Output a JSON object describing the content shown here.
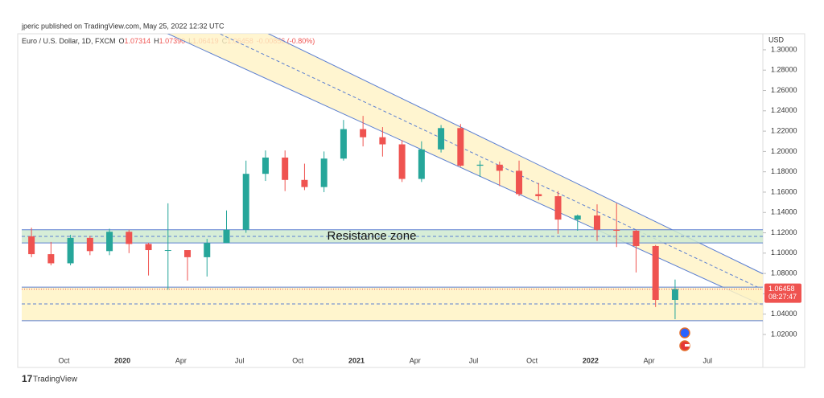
{
  "published": "jperic published on TradingView.com, May 25, 2022 12:32 UTC",
  "footer_logo": "TradingView",
  "header": {
    "symbol": "Euro / U.S. Dollar, 1D, FXCM",
    "stats": [
      {
        "label": "O",
        "value": "1.07314"
      },
      {
        "label": "H",
        "value": "1.07390"
      },
      {
        "label": "L",
        "value": "1.06419"
      },
      {
        "label": "C",
        "value": "1.06458"
      }
    ],
    "change": "-0.00856 (-0.80%)"
  },
  "chart_data": {
    "type": "candlestick",
    "currency": "USD",
    "categories": [
      null,
      null,
      "Oct",
      null,
      null,
      "2020",
      null,
      null,
      "Apr",
      null,
      null,
      "Jul",
      null,
      null,
      "Oct",
      null,
      null,
      "2021",
      null,
      null,
      "Apr",
      null,
      null,
      "Jul",
      null,
      null,
      "Oct",
      null,
      null,
      "2022",
      null,
      null,
      "Apr",
      null,
      null,
      "Jul",
      null,
      null
    ],
    "open": [
      1.1165,
      1.099,
      1.09,
      1.115,
      1.102,
      1.121,
      1.109,
      1.103,
      1.103,
      1.096,
      1.11,
      1.123,
      1.178,
      1.194,
      1.172,
      1.165,
      1.193,
      1.222,
      1.214,
      1.207,
      1.173,
      1.202,
      1.223,
      1.186,
      1.187,
      1.181,
      1.158,
      1.156,
      1.133,
      1.137,
      1.123,
      1.122,
      1.107,
      1.054,
      null,
      null,
      null,
      null
    ],
    "high": [
      1.125,
      1.111,
      1.118,
      1.117,
      1.124,
      1.123,
      1.11,
      1.149,
      1.102,
      1.114,
      1.142,
      1.191,
      1.201,
      1.201,
      1.188,
      1.2,
      1.231,
      1.235,
      1.224,
      1.211,
      1.21,
      1.226,
      1.227,
      1.191,
      1.19,
      1.191,
      1.169,
      1.161,
      1.138,
      1.148,
      1.149,
      1.123,
      1.108,
      1.074,
      null,
      null,
      null,
      null
    ],
    "low": [
      1.096,
      1.088,
      1.088,
      1.098,
      1.098,
      1.1,
      1.078,
      1.064,
      1.073,
      1.077,
      1.11,
      1.12,
      1.171,
      1.161,
      1.162,
      1.16,
      1.191,
      1.205,
      1.195,
      1.17,
      1.17,
      1.199,
      1.185,
      1.175,
      1.166,
      1.156,
      1.152,
      1.119,
      1.122,
      1.112,
      1.106,
      1.081,
      1.047,
      1.035,
      null,
      null,
      null,
      null
    ],
    "close": [
      1.099,
      1.09,
      1.115,
      1.102,
      1.121,
      1.109,
      1.103,
      1.103,
      1.096,
      1.11,
      1.123,
      1.178,
      1.194,
      1.172,
      1.165,
      1.193,
      1.222,
      1.214,
      1.207,
      1.173,
      1.202,
      1.223,
      1.186,
      1.187,
      1.181,
      1.158,
      1.156,
      1.133,
      1.137,
      1.123,
      1.122,
      1.107,
      1.054,
      1.0646,
      null,
      null,
      null,
      null
    ],
    "up_color": "#26a69a",
    "down_color": "#ef5350",
    "ylim": [
      1.001,
      1.3134
    ],
    "yticks": [
      {
        "value": 1.02,
        "label": "1.02000"
      },
      {
        "value": 1.04,
        "label": "1.04000"
      },
      {
        "value": 1.06,
        "label": "1.06000"
      },
      {
        "value": 1.08,
        "label": "1.08000"
      },
      {
        "value": 1.1,
        "label": "1.10000"
      },
      {
        "value": 1.12,
        "label": "1.12000"
      },
      {
        "value": 1.14,
        "label": "1.14000"
      },
      {
        "value": 1.16,
        "label": "1.16000"
      },
      {
        "value": 1.18,
        "label": "1.18000"
      },
      {
        "value": 1.2,
        "label": "1.20000"
      },
      {
        "value": 1.22,
        "label": "1.22000"
      },
      {
        "value": 1.24,
        "label": "1.24000"
      },
      {
        "value": 1.26,
        "label": "1.26000"
      },
      {
        "value": 1.28,
        "label": "1.28000"
      },
      {
        "value": 1.3,
        "label": "1.30000"
      }
    ],
    "last_price": {
      "value": 1.06458,
      "label": "1.06458",
      "countdown": "08:27:47",
      "color": "#ef5350"
    },
    "channel": {
      "upper": [
        1.4337,
        1.0797
      ],
      "lower": [
        1.3815,
        1.0485
      ],
      "fill": "#fff3c4",
      "line_color": "#5b7fd1"
    },
    "zones": [
      {
        "name": "Resistance zone",
        "low": 1.11,
        "high": 1.123,
        "mid": 1.1165,
        "fill": "#cfead0"
      },
      {
        "low": 1.0335,
        "high": 1.0665,
        "mid": 1.05,
        "fill": "#fff3c4"
      }
    ]
  }
}
